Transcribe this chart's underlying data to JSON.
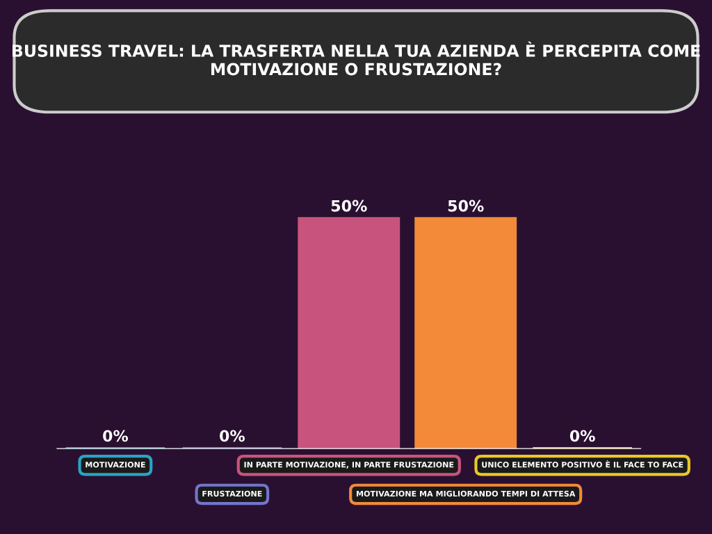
{
  "chart_data": {
    "type": "bar",
    "title": "BUSINESS TRAVEL: LA TRASFERTA NELLA TUA AZIENDA È PERCEPITA COME MOTIVAZIONE O FRUSTAZIONE?",
    "categories": [
      "MOTIVAZIONE",
      "FRUSTAZIONE",
      "IN PARTE MOTIVAZIONE, IN PARTE FRUSTAZIONE",
      "MOTIVAZIONE MA MIGLIORANDO TEMPI DI ATTESA",
      "UNICO ELEMENTO POSITIVO È IL FACE TO FACE"
    ],
    "values": [
      0,
      0,
      50,
      50,
      0
    ],
    "value_labels": [
      "0%",
      "0%",
      "50%",
      "50%",
      "0%"
    ],
    "colors": [
      "#2aa3c4",
      "#7474cc",
      "#c8547e",
      "#f28a3a",
      "#e8c828"
    ],
    "tick_labels": "x",
    "grid": false
  }
}
